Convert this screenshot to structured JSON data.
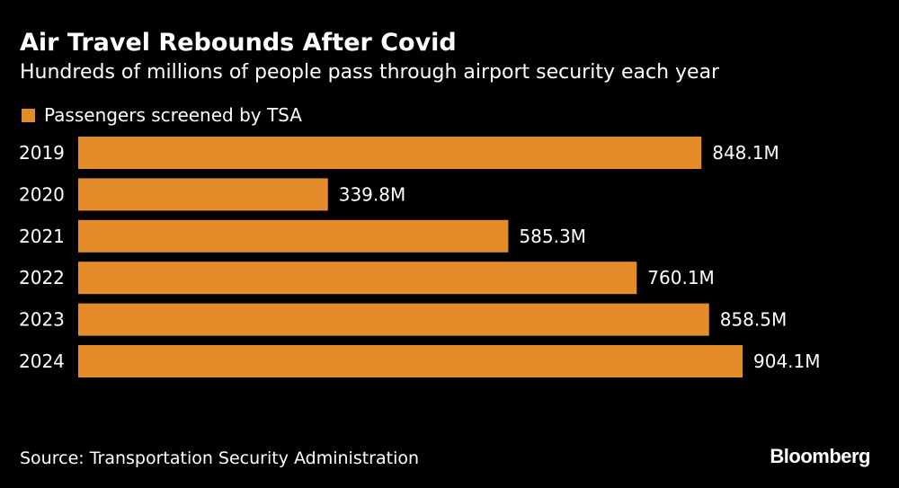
{
  "chart_data": {
    "type": "bar",
    "orientation": "horizontal",
    "title": "Air Travel Rebounds After Covid",
    "subtitle": "Hundreds of millions of people pass through airport security each year",
    "categories": [
      "2019",
      "2020",
      "2021",
      "2022",
      "2023",
      "2024"
    ],
    "series": [
      {
        "name": "Passengers screened by TSA",
        "values": [
          848.1,
          339.8,
          585.3,
          760.1,
          858.5,
          904.1
        ],
        "labels": [
          "848.1M",
          "339.8M",
          "585.3M",
          "760.1M",
          "858.5M",
          "904.1M"
        ]
      }
    ],
    "xlim": [
      0,
      904.1
    ],
    "xlabel": "",
    "ylabel": "",
    "unit": "M",
    "grid": false,
    "legend_position": "top-left",
    "source": "Source: Transportation Security Administration",
    "brand": "Bloomberg"
  },
  "colors": {
    "background": "#000000",
    "bar": "#E48C2A",
    "text": "#FFFFFF"
  }
}
